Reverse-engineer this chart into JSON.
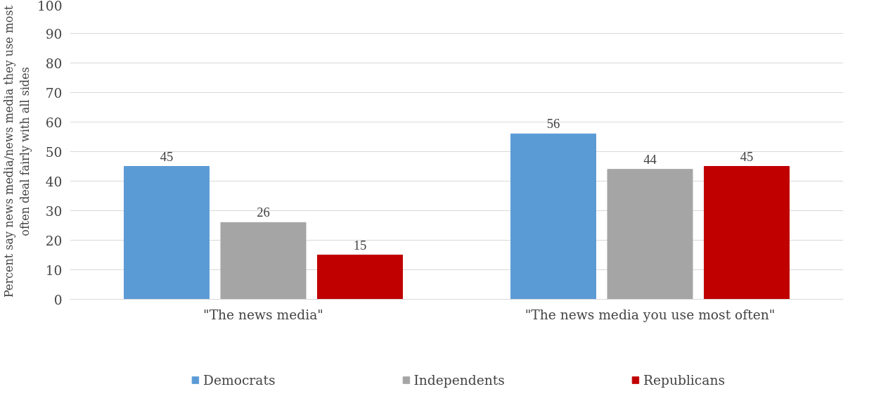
{
  "chart_data": {
    "type": "bar",
    "ylabel": "Percent say news media/news media they use most often deal fairly with all sides",
    "categories": [
      "\"The news media\"",
      "\"The news media you use most often\""
    ],
    "series": [
      {
        "name": "Democrats",
        "color": "#5b9bd5",
        "values": [
          45,
          56
        ]
      },
      {
        "name": "Independents",
        "color": "#a5a5a5",
        "values": [
          26,
          44
        ]
      },
      {
        "name": "Republicans",
        "color": "#c00000",
        "values": [
          15,
          45
        ]
      }
    ],
    "ylim": [
      0,
      100
    ],
    "yticks": [
      0,
      10,
      20,
      30,
      40,
      50,
      60,
      70,
      80,
      90,
      100
    ],
    "grid": "y",
    "legend": "bottom",
    "data_labels": true
  }
}
